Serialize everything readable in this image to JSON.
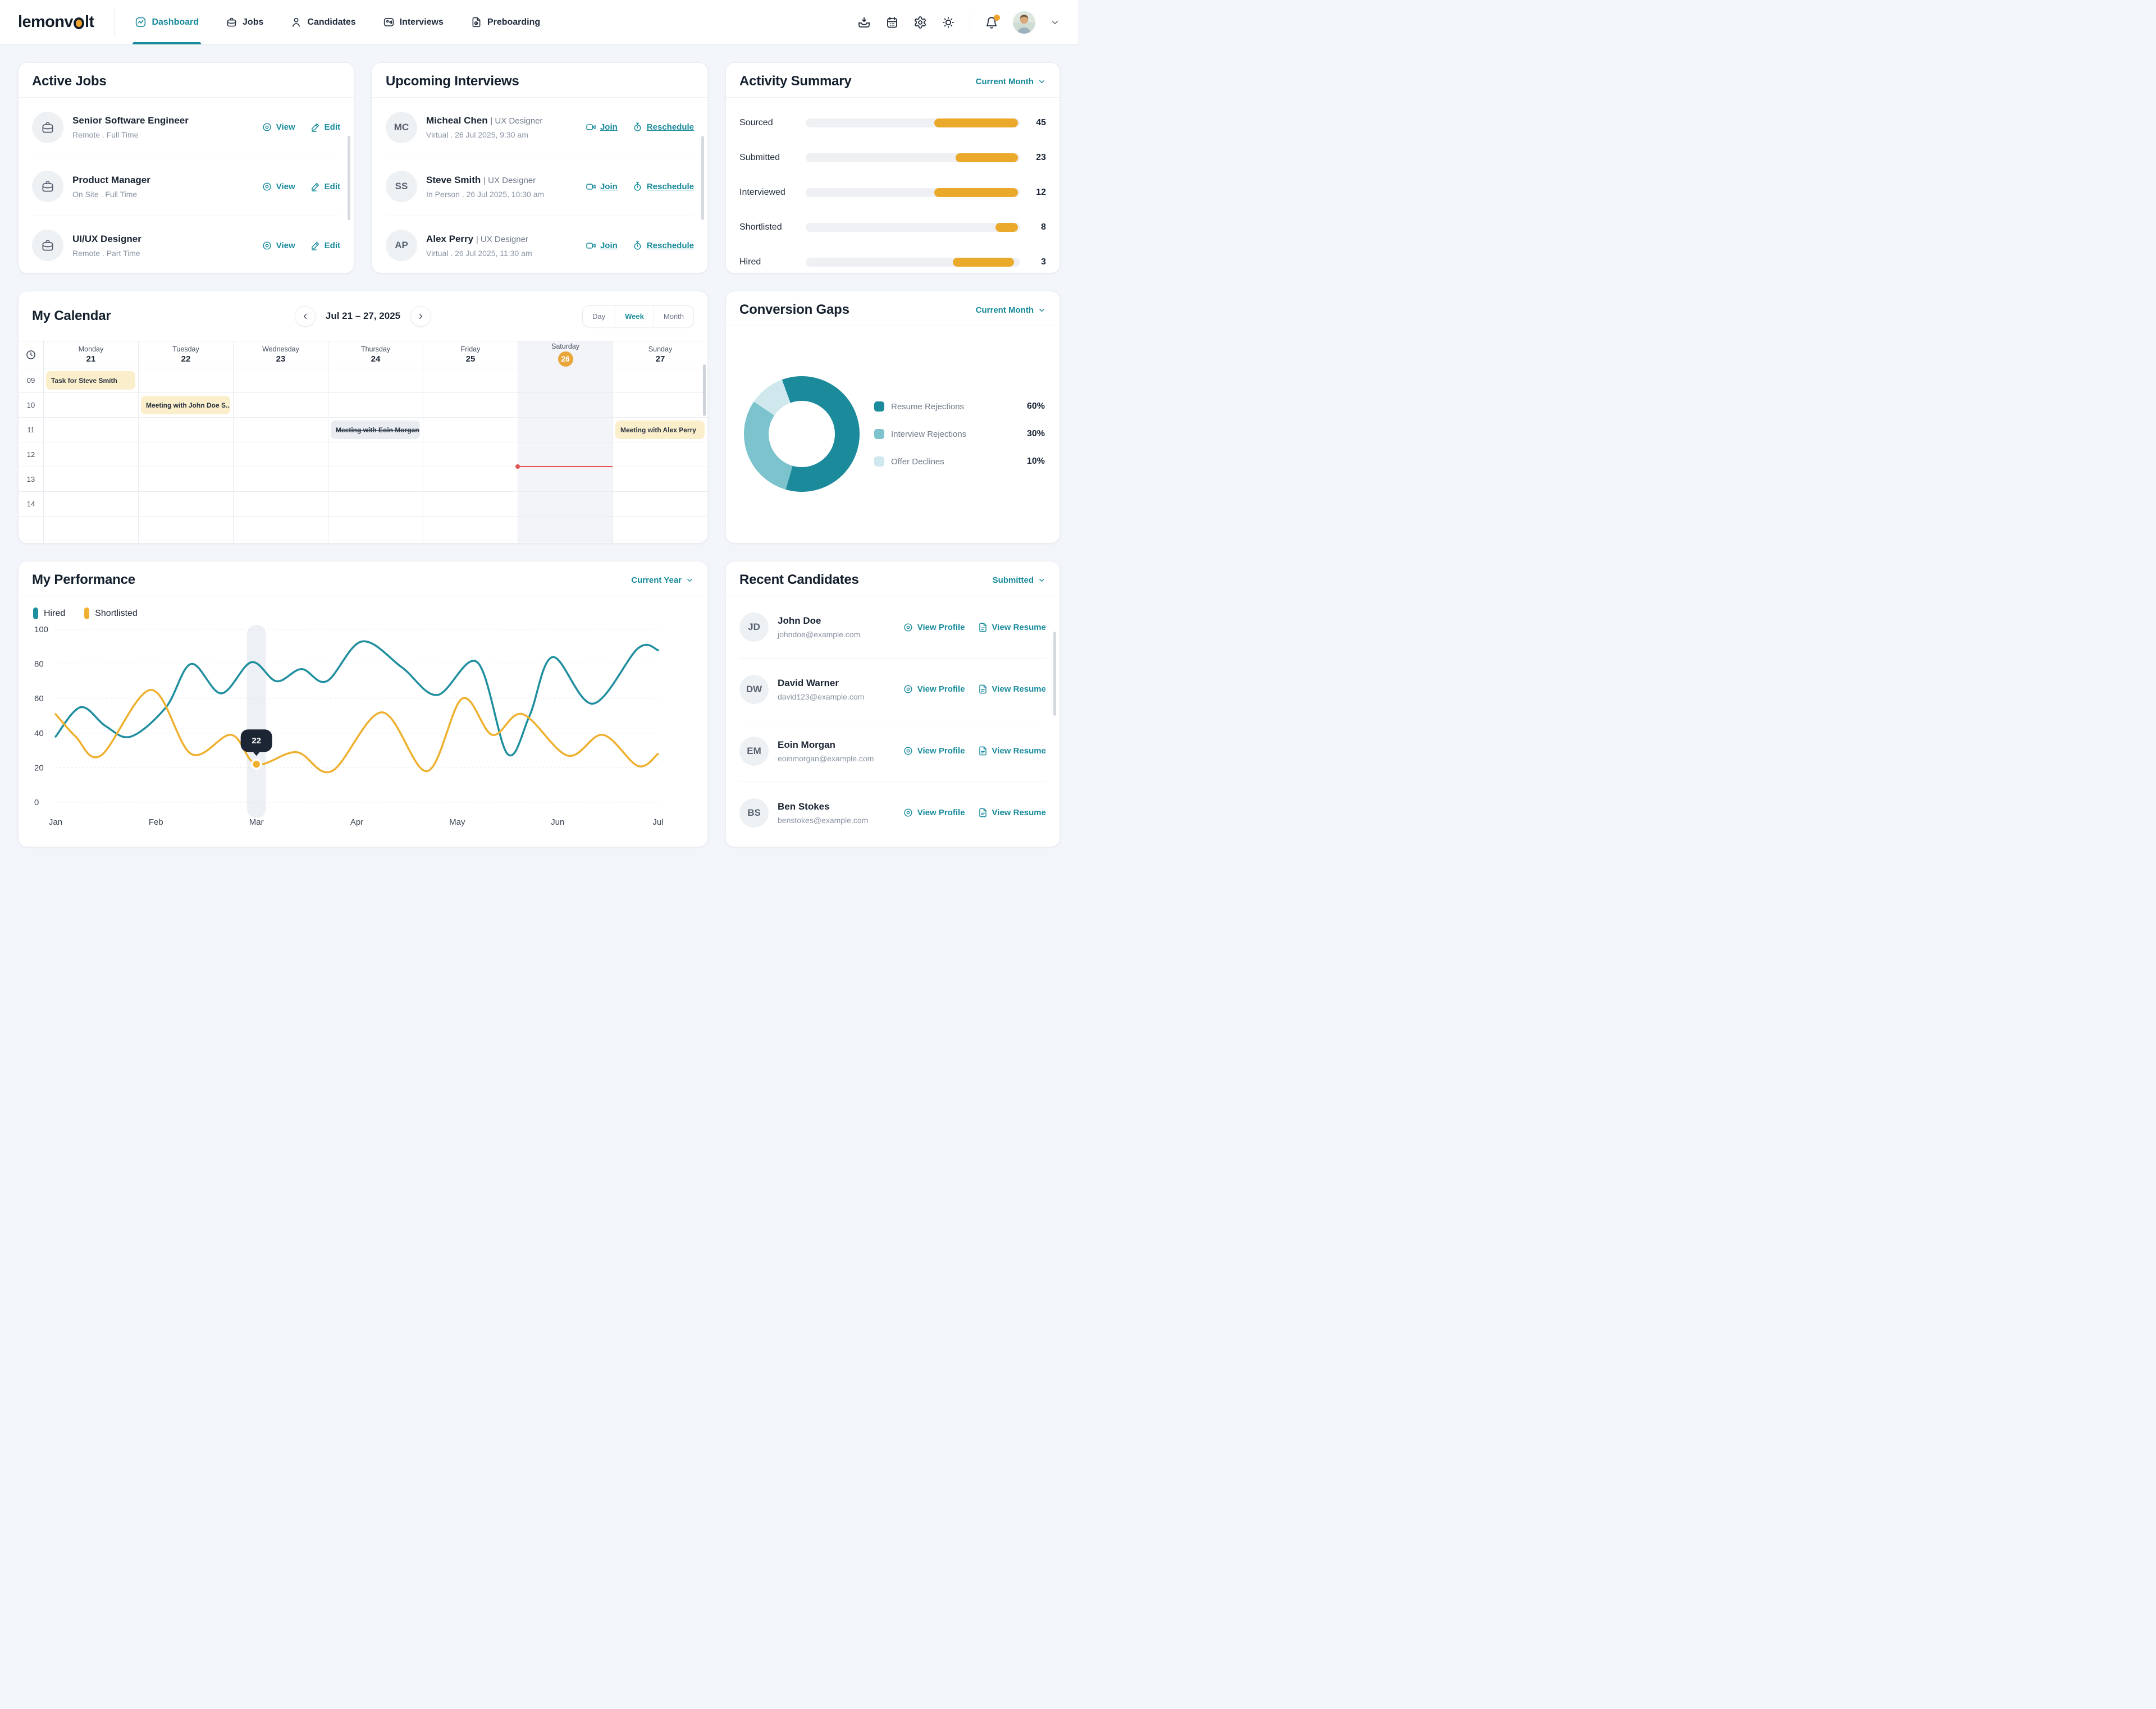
{
  "nav": {
    "logo_pre": "lemonv",
    "logo_post": "lt",
    "tabs": [
      {
        "label": "Dashboard",
        "active": true
      },
      {
        "label": "Jobs",
        "active": false
      },
      {
        "label": "Candidates",
        "active": false
      },
      {
        "label": "Interviews",
        "active": false
      },
      {
        "label": "Preboarding",
        "active": false
      }
    ]
  },
  "active_jobs": {
    "title": "Active Jobs",
    "view_label": "View",
    "edit_label": "Edit",
    "items": [
      {
        "title": "Senior Software Engineer",
        "meta": "Remote . Full Time"
      },
      {
        "title": "Product Manager",
        "meta": "On Site . Full Time"
      },
      {
        "title": "UI/UX Designer",
        "meta": "Remote . Part Time"
      }
    ]
  },
  "upcoming_interviews": {
    "title": "Upcoming Interviews",
    "join_label": "Join",
    "reschedule_label": "Reschedule",
    "items": [
      {
        "initials": "MC",
        "name": "Micheal Chen",
        "role": "| UX Designer",
        "meta": "Virtual . 26 Jul 2025, 9:30 am"
      },
      {
        "initials": "SS",
        "name": "Steve Smith",
        "role": "| UX Designer",
        "meta": "In Person . 26 Jul 2025, 10:30 am"
      },
      {
        "initials": "AP",
        "name": "Alex Perry",
        "role": "| UX Designer",
        "meta": "Virtual . 26 Jul 2025, 11:30 am"
      }
    ]
  },
  "activity_summary": {
    "title": "Activity Summary",
    "filter_label": "Current Month",
    "chart_data": {
      "type": "bar",
      "categories": [
        "Sourced",
        "Submitted",
        "Interviewed",
        "Shortlisted",
        "Hired"
      ],
      "values": [
        45,
        23,
        12,
        8,
        3
      ],
      "bar_color": "#eba92b"
    },
    "rows": [
      {
        "label": "Sourced",
        "value": "45",
        "fill_pct": 39,
        "right_pct": 1
      },
      {
        "label": "Submitted",
        "value": "23",
        "fill_pct": 29,
        "right_pct": 1
      },
      {
        "label": "Interviewed",
        "value": "12",
        "fill_pct": 39,
        "right_pct": 1
      },
      {
        "label": "Shortlisted",
        "value": "8",
        "fill_pct": 10.5,
        "right_pct": 1
      },
      {
        "label": "Hired",
        "value": "3",
        "fill_pct": 28.5,
        "right_pct": 3
      }
    ]
  },
  "calendar": {
    "title": "My Calendar",
    "range_label": "Jul 21 – 27, 2025",
    "views": [
      "Day",
      "Week",
      "Month"
    ],
    "active_view": "Week",
    "days": [
      {
        "name": "Monday",
        "num": "21"
      },
      {
        "name": "Tuesday",
        "num": "22"
      },
      {
        "name": "Wednesday",
        "num": "23"
      },
      {
        "name": "Thursday",
        "num": "24"
      },
      {
        "name": "Friday",
        "num": "25"
      },
      {
        "name": "Saturday",
        "num": "26",
        "today": true
      },
      {
        "name": "Sunday",
        "num": "27"
      }
    ],
    "times": [
      "09",
      "10",
      "11",
      "12",
      "13",
      "14"
    ],
    "events": [
      {
        "day": 0,
        "row": 0,
        "label": "Task for Steve Smith",
        "style": "amber"
      },
      {
        "day": 1,
        "row": 1,
        "label": "Meeting with John Doe S...",
        "style": "amber"
      },
      {
        "day": 3,
        "row": 2,
        "label": "Meeting with Eoin Morgan",
        "style": "muted-strike"
      },
      {
        "day": 6,
        "row": 2,
        "label": "Meeting with Alex Perry",
        "style": "amber"
      }
    ],
    "now_indicator": {
      "day_index": 5,
      "after_row": 3
    }
  },
  "conversion_gaps": {
    "title": "Conversion Gaps",
    "filter_label": "Current Month",
    "chart_data": {
      "type": "pie",
      "donut": true,
      "start_angle_deg": -20,
      "slices": [
        {
          "label": "Resume Rejections",
          "value": 60,
          "color": "#1b8a9b"
        },
        {
          "label": "Interview Rejections",
          "value": 30,
          "color": "#7cc3cd"
        },
        {
          "label": "Offer Declines",
          "value": 10,
          "color": "#cfe8ed"
        }
      ]
    },
    "legend": [
      {
        "label": "Resume Rejections",
        "value": "60%"
      },
      {
        "label": "Interview Rejections",
        "value": "30%"
      },
      {
        "label": "Offer Declines",
        "value": "10%"
      }
    ]
  },
  "performance": {
    "title": "My Performance",
    "filter_label": "Current Year",
    "legend": [
      {
        "label": "Hired",
        "color": "#1f8e9e"
      },
      {
        "label": "Shortlisted",
        "color": "#eeb02e"
      }
    ],
    "chart_data": {
      "type": "line",
      "x_ticks": [
        "Jan",
        "Feb",
        "Mar",
        "Apr",
        "May",
        "Jun",
        "Jul"
      ],
      "y_ticks": [
        0,
        20,
        40,
        60,
        80,
        100
      ],
      "ylim": [
        0,
        100
      ],
      "grid": "dotted",
      "highlight": {
        "x_month": 2,
        "series": "Shortlisted",
        "value": 22,
        "tooltip": "22"
      },
      "series": [
        {
          "name": "Hired",
          "color": "#1f8e9e",
          "points": [
            [
              0,
              38
            ],
            [
              0.25,
              55
            ],
            [
              0.5,
              44
            ],
            [
              0.75,
              38
            ],
            [
              1.1,
              55
            ],
            [
              1.35,
              80
            ],
            [
              1.65,
              63
            ],
            [
              1.95,
              81
            ],
            [
              2.2,
              70
            ],
            [
              2.45,
              77
            ],
            [
              2.7,
              70
            ],
            [
              3.05,
              93
            ],
            [
              3.45,
              78
            ],
            [
              3.8,
              62
            ],
            [
              4.2,
              81
            ],
            [
              4.5,
              28
            ],
            [
              4.72,
              50
            ],
            [
              4.95,
              84
            ],
            [
              5.35,
              57
            ],
            [
              5.8,
              89
            ],
            [
              6,
              88
            ]
          ]
        },
        {
          "name": "Shortlisted",
          "color": "#eeb02e",
          "points": [
            [
              0,
              51
            ],
            [
              0.2,
              38
            ],
            [
              0.45,
              27
            ],
            [
              0.95,
              65
            ],
            [
              1.35,
              28
            ],
            [
              1.75,
              39
            ],
            [
              2,
              22
            ],
            [
              2.4,
              29
            ],
            [
              2.75,
              18
            ],
            [
              3.25,
              52
            ],
            [
              3.7,
              18
            ],
            [
              4.05,
              60
            ],
            [
              4.35,
              39
            ],
            [
              4.65,
              51
            ],
            [
              5.1,
              27
            ],
            [
              5.45,
              39
            ],
            [
              5.8,
              21
            ],
            [
              6,
              28
            ]
          ]
        }
      ]
    }
  },
  "recent_candidates": {
    "title": "Recent Candidates",
    "filter_label": "Submitted",
    "view_profile_label": "View Profile",
    "view_resume_label": "View Resume",
    "items": [
      {
        "initials": "JD",
        "name": "John Doe",
        "email": "johndoe@example.com"
      },
      {
        "initials": "DW",
        "name": "David Warner",
        "email": "david123@example.com"
      },
      {
        "initials": "EM",
        "name": "Eoin Morgan",
        "email": "eoinmorgan@example.com"
      },
      {
        "initials": "BS",
        "name": "Ben Stokes",
        "email": "benstokes@example.com"
      }
    ]
  },
  "colors": {
    "accent_teal": "#178a9b",
    "accent_amber": "#eba92b",
    "now_red": "#e25352",
    "event_amber_bg": "#fbeecb",
    "event_muted_bg": "#e9edf2"
  }
}
